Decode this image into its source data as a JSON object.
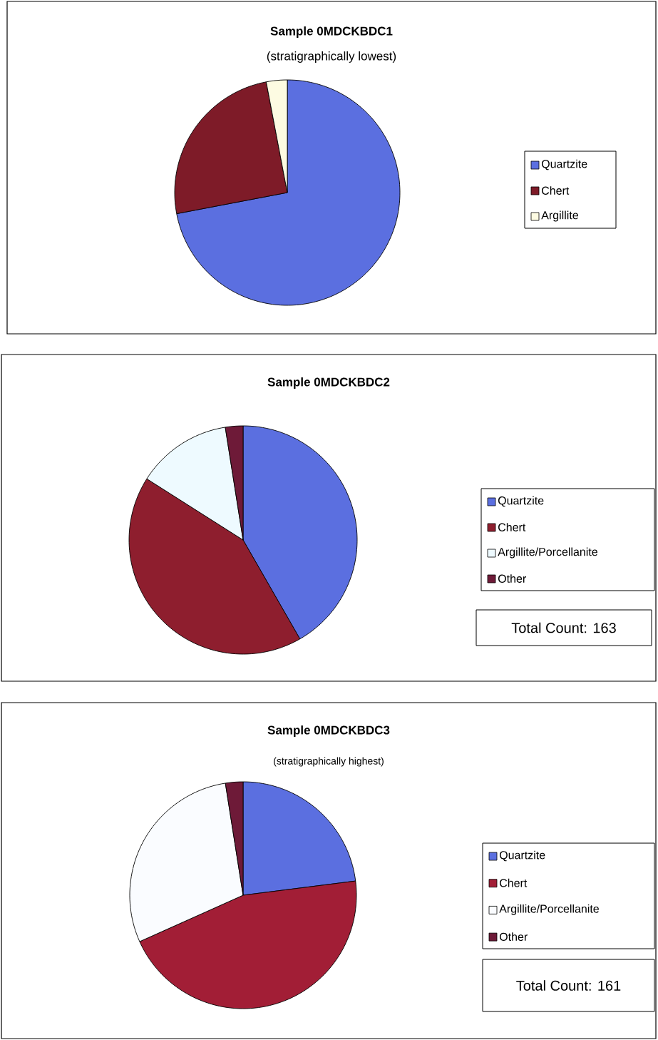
{
  "chart_data": [
    {
      "type": "pie",
      "title": "Sample 0MDCKBDC1",
      "subtitle": "(stratigraphically lowest)",
      "categories": [
        "Quartzite",
        "Chert",
        "Argillite"
      ],
      "values": [
        72,
        25,
        3
      ],
      "colors": [
        "#5b6fe0",
        "#7e1b28",
        "#fdfbe2"
      ],
      "legend": "right"
    },
    {
      "type": "pie",
      "title": "Sample 0MDCKBDC2",
      "categories": [
        "Quartzite",
        "Chert",
        "Argillite/Porcellanite",
        "Other"
      ],
      "values": [
        41.7,
        42.3,
        13.5,
        2.5
      ],
      "colors": [
        "#5b6fe0",
        "#8e1e2e",
        "#eefaff",
        "#6e1a38"
      ],
      "legend": "right",
      "annotations": [
        "Total Count: 163"
      ]
    },
    {
      "type": "pie",
      "title": "Sample 0MDCKBDC3",
      "subtitle": "(stratigraphically highest)",
      "categories": [
        "Quartzite",
        "Chert",
        "Argillite/Porcellanite",
        "Other"
      ],
      "values": [
        23.0,
        45.3,
        29.2,
        2.5
      ],
      "colors": [
        "#5b6fe0",
        "#a21e36",
        "#fafcff",
        "#6e1a38"
      ],
      "legend": "right",
      "annotations": [
        "Total Count: 161"
      ]
    }
  ]
}
